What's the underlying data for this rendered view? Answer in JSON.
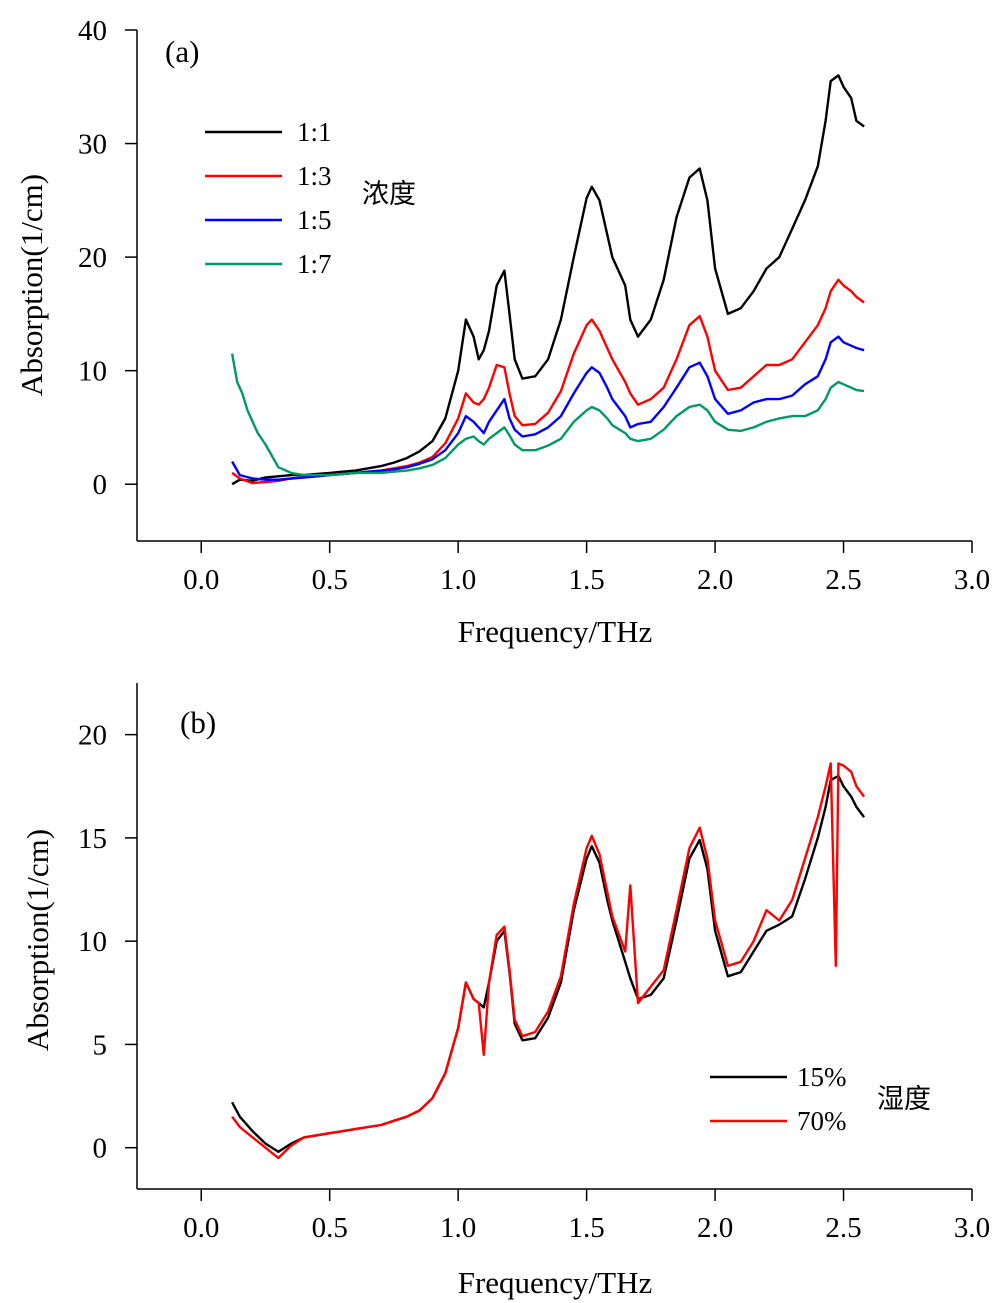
{
  "chart_data": [
    {
      "type": "line",
      "panel_label": "(a)",
      "xlabel": "Frequency/THz",
      "ylabel": "Absorption(1/cm)",
      "xlim": [
        -0.25,
        3.0
      ],
      "ylim": [
        -5,
        40
      ],
      "x_ticks": [
        0.0,
        0.5,
        1.0,
        1.5,
        2.0,
        2.5,
        3.0
      ],
      "x_tick_labels": [
        "0.0",
        "0.5",
        "1.0",
        "1.5",
        "2.0",
        "2.5",
        "3.0"
      ],
      "y_ticks": [
        0,
        10,
        20,
        30,
        40
      ],
      "y_tick_labels": [
        "0",
        "10",
        "20",
        "30",
        "40"
      ],
      "legend_title": "浓度",
      "legend_position": "top-left",
      "series": [
        {
          "name": "1:1",
          "color": "#000000",
          "x": [
            0.12,
            0.15,
            0.2,
            0.25,
            0.3,
            0.35,
            0.4,
            0.45,
            0.5,
            0.55,
            0.6,
            0.65,
            0.7,
            0.75,
            0.8,
            0.85,
            0.9,
            0.95,
            1.0,
            1.03,
            1.06,
            1.08,
            1.1,
            1.12,
            1.15,
            1.18,
            1.2,
            1.22,
            1.25,
            1.3,
            1.35,
            1.4,
            1.45,
            1.5,
            1.52,
            1.55,
            1.58,
            1.6,
            1.65,
            1.67,
            1.7,
            1.75,
            1.8,
            1.85,
            1.9,
            1.94,
            1.97,
            2.0,
            2.05,
            2.1,
            2.15,
            2.2,
            2.25,
            2.3,
            2.35,
            2.4,
            2.43,
            2.45,
            2.48,
            2.5,
            2.53,
            2.55,
            2.58
          ],
          "y": [
            0.0,
            0.4,
            0.3,
            0.6,
            0.7,
            0.8,
            0.8,
            0.9,
            1.0,
            1.1,
            1.2,
            1.4,
            1.6,
            1.9,
            2.3,
            2.9,
            3.8,
            5.8,
            10.0,
            14.5,
            13.0,
            11.0,
            11.8,
            13.5,
            17.5,
            18.8,
            15.0,
            11.0,
            9.3,
            9.5,
            11.0,
            14.5,
            20.0,
            25.2,
            26.2,
            25.0,
            22.0,
            20.0,
            17.5,
            14.5,
            13.0,
            14.5,
            18.0,
            23.5,
            27.0,
            27.8,
            25.0,
            19.0,
            15.0,
            15.5,
            17.0,
            19.0,
            20.0,
            22.5,
            25.0,
            28.0,
            32.0,
            35.5,
            36.0,
            35.0,
            34.0,
            32.0,
            31.5
          ]
        },
        {
          "name": "1:3",
          "color": "#ff0000",
          "x": [
            0.12,
            0.15,
            0.2,
            0.25,
            0.3,
            0.35,
            0.4,
            0.45,
            0.5,
            0.55,
            0.6,
            0.65,
            0.7,
            0.75,
            0.8,
            0.85,
            0.9,
            0.95,
            1.0,
            1.03,
            1.06,
            1.08,
            1.1,
            1.12,
            1.15,
            1.18,
            1.2,
            1.22,
            1.25,
            1.3,
            1.35,
            1.4,
            1.45,
            1.5,
            1.52,
            1.55,
            1.58,
            1.6,
            1.65,
            1.67,
            1.7,
            1.75,
            1.8,
            1.85,
            1.9,
            1.94,
            1.97,
            2.0,
            2.05,
            2.1,
            2.15,
            2.2,
            2.25,
            2.3,
            2.35,
            2.4,
            2.43,
            2.45,
            2.48,
            2.5,
            2.53,
            2.55,
            2.58
          ],
          "y": [
            1.0,
            0.5,
            0.1,
            0.2,
            0.3,
            0.5,
            0.6,
            0.7,
            0.8,
            0.9,
            1.0,
            1.1,
            1.2,
            1.4,
            1.6,
            1.9,
            2.4,
            3.6,
            5.8,
            8.0,
            7.2,
            7.0,
            7.5,
            8.5,
            10.5,
            10.3,
            8.0,
            6.0,
            5.2,
            5.3,
            6.3,
            8.2,
            11.5,
            14.0,
            14.5,
            13.5,
            12.0,
            11.0,
            9.0,
            8.0,
            7.0,
            7.5,
            8.5,
            11.0,
            14.0,
            14.8,
            13.0,
            10.0,
            8.3,
            8.5,
            9.5,
            10.5,
            10.5,
            11.0,
            12.5,
            14.0,
            15.5,
            17.0,
            18.0,
            17.5,
            17.0,
            16.5,
            16.0
          ]
        },
        {
          "name": "1:5",
          "color": "#0000ff",
          "x": [
            0.12,
            0.15,
            0.2,
            0.25,
            0.3,
            0.35,
            0.4,
            0.45,
            0.5,
            0.55,
            0.6,
            0.65,
            0.7,
            0.75,
            0.8,
            0.85,
            0.9,
            0.95,
            1.0,
            1.03,
            1.06,
            1.08,
            1.1,
            1.12,
            1.15,
            1.18,
            1.2,
            1.22,
            1.25,
            1.3,
            1.35,
            1.4,
            1.45,
            1.5,
            1.52,
            1.55,
            1.58,
            1.6,
            1.65,
            1.67,
            1.7,
            1.75,
            1.8,
            1.85,
            1.9,
            1.94,
            1.97,
            2.0,
            2.05,
            2.1,
            2.15,
            2.2,
            2.25,
            2.3,
            2.35,
            2.4,
            2.43,
            2.45,
            2.48,
            2.5,
            2.53,
            2.55,
            2.58
          ],
          "y": [
            2.0,
            0.8,
            0.5,
            0.4,
            0.4,
            0.5,
            0.6,
            0.7,
            0.8,
            0.9,
            1.0,
            1.1,
            1.2,
            1.3,
            1.5,
            1.8,
            2.2,
            3.0,
            4.5,
            6.0,
            5.5,
            5.0,
            4.5,
            5.5,
            6.5,
            7.5,
            5.8,
            4.8,
            4.2,
            4.4,
            5.0,
            6.0,
            8.0,
            9.8,
            10.3,
            9.8,
            8.5,
            7.5,
            6.0,
            5.0,
            5.3,
            5.5,
            6.8,
            8.5,
            10.3,
            10.7,
            9.5,
            7.5,
            6.2,
            6.5,
            7.2,
            7.5,
            7.5,
            7.8,
            8.8,
            9.5,
            11.0,
            12.5,
            13.0,
            12.5,
            12.2,
            12.0,
            11.8
          ]
        },
        {
          "name": "1:7",
          "color": "#009966",
          "x": [
            0.12,
            0.14,
            0.16,
            0.18,
            0.2,
            0.22,
            0.25,
            0.3,
            0.35,
            0.4,
            0.45,
            0.5,
            0.55,
            0.6,
            0.65,
            0.7,
            0.75,
            0.8,
            0.85,
            0.9,
            0.95,
            1.0,
            1.03,
            1.06,
            1.08,
            1.1,
            1.12,
            1.15,
            1.18,
            1.2,
            1.22,
            1.25,
            1.3,
            1.35,
            1.4,
            1.45,
            1.5,
            1.52,
            1.55,
            1.58,
            1.6,
            1.65,
            1.67,
            1.7,
            1.75,
            1.8,
            1.85,
            1.9,
            1.94,
            1.97,
            2.0,
            2.05,
            2.1,
            2.15,
            2.2,
            2.25,
            2.3,
            2.35,
            2.4,
            2.43,
            2.45,
            2.48,
            2.5,
            2.53,
            2.55,
            2.58
          ],
          "y": [
            11.5,
            9.0,
            8.0,
            6.5,
            5.5,
            4.5,
            3.5,
            1.5,
            1.0,
            0.8,
            0.8,
            0.8,
            0.9,
            1.0,
            1.0,
            1.0,
            1.1,
            1.2,
            1.4,
            1.7,
            2.3,
            3.5,
            4.0,
            4.2,
            3.8,
            3.5,
            4.0,
            4.5,
            5.0,
            4.3,
            3.5,
            3.0,
            3.0,
            3.4,
            4.0,
            5.5,
            6.5,
            6.8,
            6.5,
            5.8,
            5.2,
            4.5,
            4.0,
            3.8,
            4.0,
            4.8,
            6.0,
            6.8,
            7.0,
            6.5,
            5.5,
            4.8,
            4.7,
            5.0,
            5.5,
            5.8,
            6.0,
            6.0,
            6.5,
            7.5,
            8.5,
            9.0,
            8.8,
            8.5,
            8.3,
            8.2
          ]
        }
      ]
    },
    {
      "type": "line",
      "panel_label": "(b)",
      "xlabel": "Frequency/THz",
      "ylabel": "Absorption(1/cm)",
      "xlim": [
        -0.25,
        3.0
      ],
      "ylim": [
        -2,
        22.5
      ],
      "x_ticks": [
        0.0,
        0.5,
        1.0,
        1.5,
        2.0,
        2.5,
        3.0
      ],
      "x_tick_labels": [
        "0.0",
        "0.5",
        "1.0",
        "1.5",
        "2.0",
        "2.5",
        "3.0"
      ],
      "y_ticks": [
        0,
        5,
        10,
        15,
        20
      ],
      "y_tick_labels": [
        "0",
        "5",
        "10",
        "15",
        "20"
      ],
      "legend_title": "湿度",
      "legend_position": "bottom-right",
      "series": [
        {
          "name": "15%",
          "color": "#000000",
          "x": [
            0.12,
            0.15,
            0.2,
            0.25,
            0.3,
            0.35,
            0.4,
            0.45,
            0.5,
            0.55,
            0.6,
            0.65,
            0.7,
            0.75,
            0.8,
            0.85,
            0.9,
            0.95,
            1.0,
            1.03,
            1.06,
            1.08,
            1.1,
            1.12,
            1.15,
            1.18,
            1.2,
            1.22,
            1.25,
            1.3,
            1.35,
            1.4,
            1.45,
            1.5,
            1.52,
            1.55,
            1.58,
            1.6,
            1.65,
            1.67,
            1.7,
            1.75,
            1.8,
            1.85,
            1.9,
            1.94,
            1.97,
            2.0,
            2.05,
            2.1,
            2.15,
            2.2,
            2.25,
            2.3,
            2.35,
            2.4,
            2.43,
            2.45,
            2.48,
            2.5,
            2.53,
            2.55,
            2.58
          ],
          "y": [
            2.2,
            1.5,
            0.8,
            0.2,
            -0.2,
            0.2,
            0.5,
            0.6,
            0.7,
            0.8,
            0.9,
            1.0,
            1.1,
            1.3,
            1.5,
            1.8,
            2.4,
            3.6,
            5.8,
            8.0,
            7.2,
            7.0,
            6.8,
            8.0,
            10.0,
            10.5,
            8.5,
            6.0,
            5.2,
            5.3,
            6.3,
            8.0,
            11.5,
            14.0,
            14.6,
            13.8,
            12.0,
            11.0,
            9.0,
            8.2,
            7.2,
            7.4,
            8.2,
            11.0,
            14.0,
            14.9,
            13.5,
            10.5,
            8.3,
            8.5,
            9.5,
            10.5,
            10.8,
            11.2,
            13.0,
            15.0,
            16.5,
            17.8,
            18.0,
            17.5,
            17.0,
            16.5,
            16.0
          ]
        },
        {
          "name": "70%",
          "color": "#ff0000",
          "x": [
            0.12,
            0.15,
            0.2,
            0.25,
            0.3,
            0.35,
            0.4,
            0.45,
            0.5,
            0.55,
            0.6,
            0.65,
            0.7,
            0.75,
            0.8,
            0.85,
            0.9,
            0.95,
            1.0,
            1.03,
            1.06,
            1.08,
            1.1,
            1.12,
            1.15,
            1.18,
            1.2,
            1.22,
            1.25,
            1.3,
            1.35,
            1.4,
            1.45,
            1.5,
            1.52,
            1.55,
            1.58,
            1.6,
            1.65,
            1.67,
            1.7,
            1.75,
            1.8,
            1.85,
            1.9,
            1.94,
            1.97,
            2.0,
            2.05,
            2.1,
            2.15,
            2.2,
            2.25,
            2.3,
            2.35,
            2.4,
            2.43,
            2.45,
            2.47,
            2.48,
            2.5,
            2.53,
            2.55,
            2.58
          ],
          "y": [
            1.5,
            1.0,
            0.5,
            0.0,
            -0.5,
            0.1,
            0.5,
            0.6,
            0.7,
            0.8,
            0.9,
            1.0,
            1.1,
            1.3,
            1.5,
            1.8,
            2.4,
            3.6,
            5.8,
            8.0,
            7.2,
            7.0,
            4.5,
            8.0,
            10.3,
            10.7,
            8.6,
            6.2,
            5.4,
            5.6,
            6.6,
            8.3,
            11.8,
            14.5,
            15.1,
            14.2,
            12.4,
            11.2,
            9.5,
            12.7,
            7.0,
            7.8,
            8.6,
            11.5,
            14.5,
            15.5,
            14.0,
            11.0,
            8.8,
            9.0,
            10.0,
            11.5,
            11.0,
            12.0,
            14.0,
            16.0,
            17.5,
            18.6,
            8.8,
            18.6,
            18.5,
            18.2,
            17.5,
            17.0
          ]
        }
      ]
    }
  ]
}
